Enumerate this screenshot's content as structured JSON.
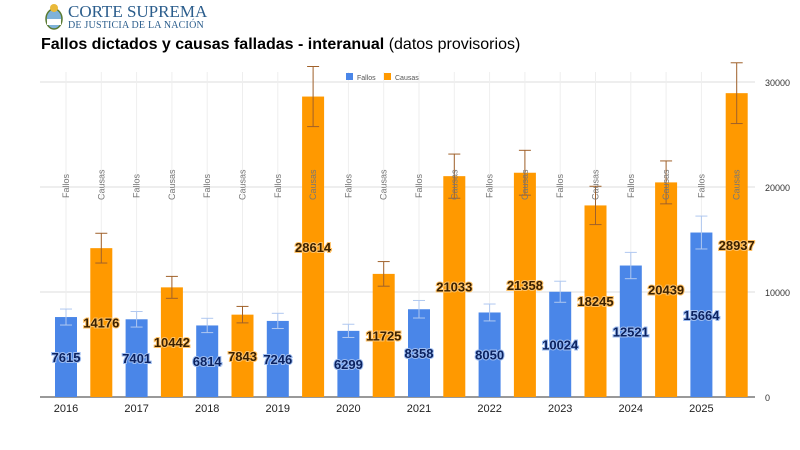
{
  "header": {
    "org_line1": "CORTE SUPREMA",
    "org_line2": "DE JUSTICIA DE LA NACIÓN"
  },
  "chart_data": {
    "type": "bar",
    "title": "Fallos dictados y causas falladas - interanual",
    "subtitle": "(datos provisorios)",
    "categories": [
      "2016",
      "2017",
      "2018",
      "2019",
      "2020",
      "2021",
      "2022",
      "2023",
      "2024",
      "2025"
    ],
    "series": [
      {
        "name": "Fallos",
        "color": "#4a86e8",
        "values": [
          7615,
          7401,
          6814,
          7246,
          6299,
          8358,
          8050,
          10024,
          12521,
          15664
        ]
      },
      {
        "name": "Causas",
        "color": "#ff9900",
        "values": [
          14176,
          10442,
          7843,
          28614,
          11725,
          21033,
          21358,
          18245,
          20439,
          28937
        ]
      }
    ],
    "error_bars": "±10%",
    "yaxis": {
      "position": "right",
      "ticks": [
        "0",
        "10000",
        "20000",
        "30000"
      ],
      "ylim": [
        0,
        33000
      ]
    },
    "grid": true,
    "legend": "top-center"
  }
}
